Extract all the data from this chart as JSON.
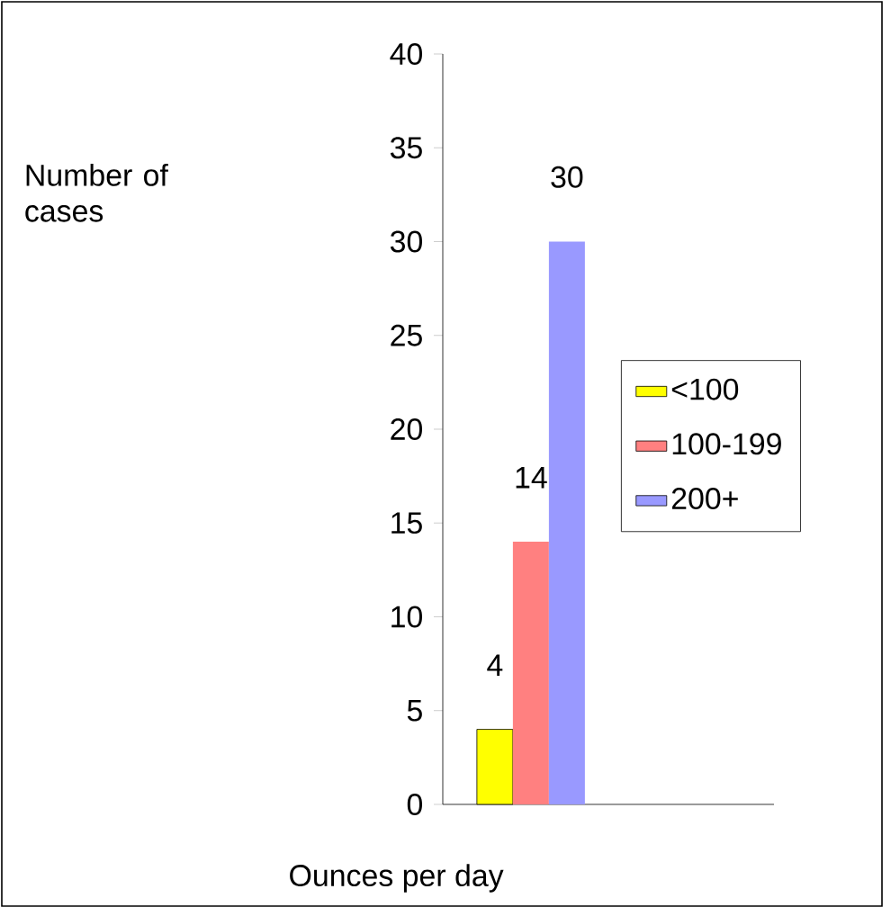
{
  "chart_data": {
    "type": "bar",
    "categories": [
      null
    ],
    "xlabel": "Ounces per day",
    "annotations": [
      "Number of cases"
    ],
    "ylim": [
      0,
      40
    ],
    "yticks": [
      0,
      5,
      10,
      15,
      20,
      25,
      30,
      35,
      40
    ],
    "legend": "right",
    "data_labels": true,
    "series": [
      {
        "name": "<100",
        "color": "#ffff00",
        "values": [
          4
        ]
      },
      {
        "name": "100-199",
        "color": "#ff8080",
        "values": [
          14
        ]
      },
      {
        "name": "200+",
        "color": "#9999ff",
        "values": [
          30
        ]
      }
    ]
  }
}
